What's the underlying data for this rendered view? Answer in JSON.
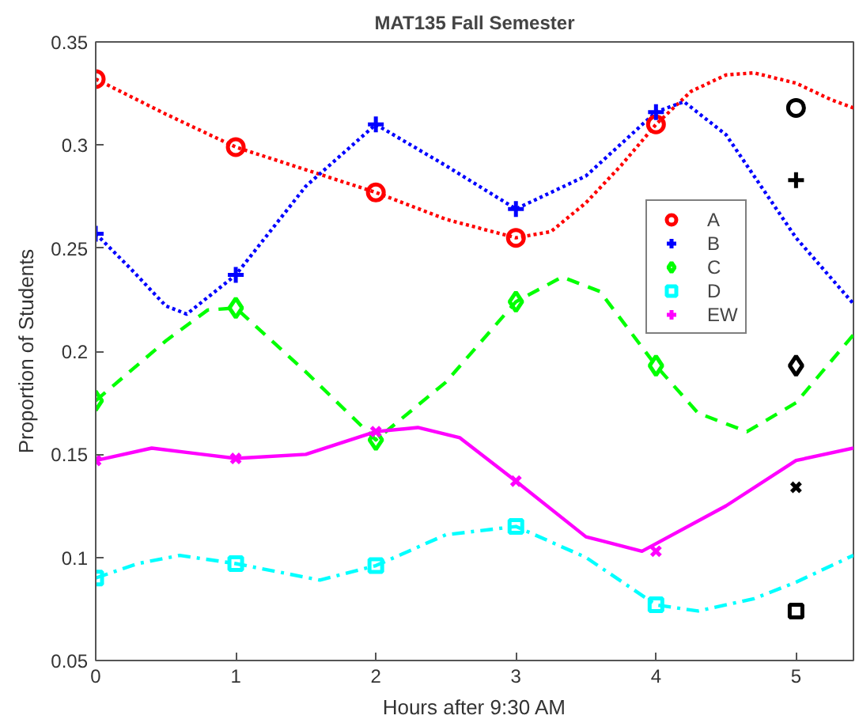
{
  "chart_data": {
    "type": "scatter",
    "title": "MAT135 Fall Semester",
    "xlabel": "Hours after 9:30 AM",
    "ylabel": "Proportion of Students",
    "xlim": [
      0,
      5.41
    ],
    "ylim": [
      0.05,
      0.35
    ],
    "xticks": [
      0,
      1,
      2,
      3,
      4,
      5
    ],
    "yticks": [
      0.05,
      0.1,
      0.15,
      0.2,
      0.25,
      0.3,
      0.35
    ],
    "grid": false,
    "legend": "right",
    "series": [
      {
        "type": "line",
        "color": "#ff0000",
        "line_style": "dotted",
        "marker": "none",
        "x": [
          0,
          0.5,
          1,
          1.5,
          2,
          2.5,
          3,
          3.25,
          3.5,
          3.75,
          4,
          4.25,
          4.5,
          4.7,
          5,
          5.25,
          5.41
        ],
        "values": [
          0.332,
          0.315,
          0.299,
          0.288,
          0.277,
          0.264,
          0.255,
          0.258,
          0.272,
          0.29,
          0.31,
          0.326,
          0.334,
          0.335,
          0.33,
          0.322,
          0.318
        ]
      },
      {
        "type": "line",
        "color": "#0000ff",
        "line_style": "dotted",
        "marker": "none",
        "x": [
          0,
          0.25,
          0.5,
          0.65,
          1,
          1.5,
          2,
          2.5,
          3,
          3.5,
          4,
          4.2,
          4.5,
          5,
          5.41
        ],
        "values": [
          0.257,
          0.24,
          0.222,
          0.218,
          0.237,
          0.28,
          0.31,
          0.29,
          0.269,
          0.285,
          0.316,
          0.321,
          0.305,
          0.255,
          0.223
        ]
      },
      {
        "type": "line",
        "color": "#00ff00",
        "line_style": "dashed",
        "marker": "none",
        "x": [
          0,
          0.5,
          0.8,
          1,
          1.5,
          2,
          2.5,
          3,
          3.33,
          3.6,
          4,
          4.3,
          4.65,
          5,
          5.41
        ],
        "values": [
          0.176,
          0.205,
          0.22,
          0.221,
          0.19,
          0.157,
          0.185,
          0.224,
          0.236,
          0.229,
          0.193,
          0.17,
          0.161,
          0.175,
          0.208
        ]
      },
      {
        "type": "line",
        "color": "#00ffff",
        "line_style": "dashdot",
        "marker": "none",
        "x": [
          0,
          0.3,
          0.6,
          1,
          1.6,
          2,
          2.5,
          3,
          3.5,
          4,
          4.3,
          4.7,
          5,
          5.41
        ],
        "values": [
          0.09,
          0.097,
          0.101,
          0.097,
          0.089,
          0.096,
          0.111,
          0.115,
          0.1,
          0.077,
          0.074,
          0.08,
          0.088,
          0.101
        ]
      },
      {
        "type": "line",
        "color": "#ff00ff",
        "line_style": "solid",
        "marker": "none",
        "x": [
          0,
          0.4,
          1,
          1.5,
          2,
          2.3,
          2.6,
          3,
          3.5,
          3.9,
          4.5,
          5,
          5.41
        ],
        "values": [
          0.147,
          0.153,
          0.148,
          0.15,
          0.161,
          0.163,
          0.158,
          0.137,
          0.11,
          0.103,
          0.125,
          0.147,
          0.153
        ]
      },
      {
        "name": "A",
        "color": "#ff0000",
        "marker": "circle",
        "x": [
          0,
          1,
          2,
          3,
          4
        ],
        "values": [
          0.332,
          0.299,
          0.277,
          0.255,
          0.31
        ]
      },
      {
        "name": "B",
        "color": "#0000ff",
        "marker": "cross",
        "x": [
          0,
          1,
          2,
          3,
          4
        ],
        "values": [
          0.257,
          0.237,
          0.31,
          0.269,
          0.316
        ]
      },
      {
        "name": "C",
        "color": "#00ff00",
        "marker": "diamond",
        "x": [
          0,
          1,
          2,
          3,
          4
        ],
        "values": [
          0.176,
          0.221,
          0.157,
          0.224,
          0.193
        ]
      },
      {
        "name": "D",
        "color": "#00ffff",
        "marker": "square",
        "x": [
          0,
          1,
          2,
          3,
          4
        ],
        "values": [
          0.09,
          0.097,
          0.096,
          0.115,
          0.077
        ]
      },
      {
        "name": "EW",
        "color": "#ff00ff",
        "marker": "cross",
        "x": [
          0,
          1,
          2,
          3,
          4
        ],
        "values": [
          0.147,
          0.148,
          0.161,
          0.137,
          0.103
        ]
      },
      {
        "color": "#000000",
        "marker": "circle",
        "x": [
          5
        ],
        "values": [
          0.318
        ]
      },
      {
        "color": "#000000",
        "marker": "cross",
        "x": [
          5
        ],
        "values": [
          0.283
        ]
      },
      {
        "color": "#000000",
        "marker": "diamond",
        "x": [
          5
        ],
        "values": [
          0.193
        ]
      },
      {
        "color": "#000000",
        "marker": "square",
        "x": [
          5
        ],
        "values": [
          0.074
        ]
      },
      {
        "color": "#000000",
        "marker": "cross",
        "x": [
          5
        ],
        "values": [
          0.134
        ]
      }
    ]
  }
}
